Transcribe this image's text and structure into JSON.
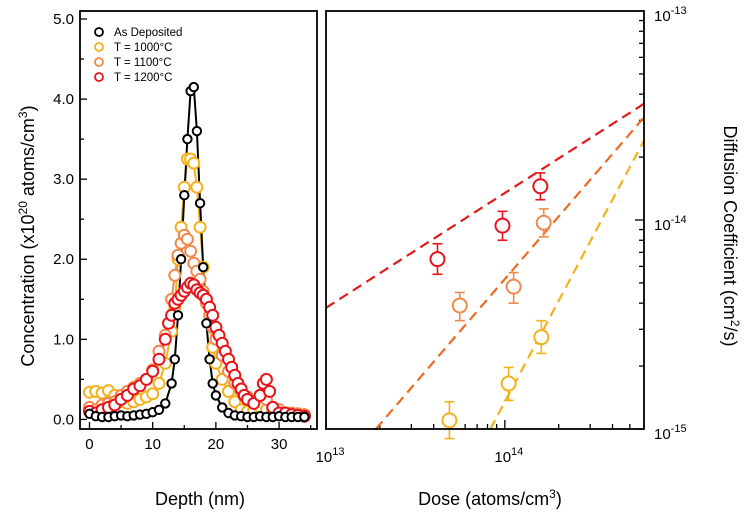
{
  "colors": {
    "as_deposited": "#000000",
    "t1000": "#f5b11c",
    "t1100": "#ef8a4c",
    "t1200": "#e8141c",
    "fit_1000": "#f2b31a",
    "fit_1100": "#ee6a22",
    "fit_1200": "#e11b1b"
  },
  "chart_data": [
    {
      "type": "scatter",
      "panel": "left",
      "xlabel": "Depth (nm)",
      "ylabel": "Concentration (x10^20 atoms/cm^3)",
      "ylabel_parts": {
        "pre": "Concentration (x10",
        "sup1": "20",
        "mid": " atoms/cm",
        "sup2": "3",
        "post": ")"
      },
      "xlim": [
        -1.5,
        36
      ],
      "ylim": [
        -0.12,
        5.1
      ],
      "x_ticks": [
        0,
        10,
        20,
        30
      ],
      "x_tick_labels": [
        "0",
        "10",
        "20",
        "30"
      ],
      "y_ticks": [
        0.0,
        1.0,
        2.0,
        3.0,
        4.0,
        5.0
      ],
      "y_tick_labels": [
        "0.0",
        "1.0",
        "2.0",
        "3.0",
        "4.0",
        "5.0"
      ],
      "grid": false,
      "legend_position": "top-left",
      "series": [
        {
          "name": "As Deposited",
          "color": "#000000",
          "points": [
            [
              0,
              0.07
            ],
            [
              1,
              0.04
            ],
            [
              2,
              0.03
            ],
            [
              3,
              0.03
            ],
            [
              4,
              0.04
            ],
            [
              5,
              0.05
            ],
            [
              6,
              0.04
            ],
            [
              7,
              0.05
            ],
            [
              8,
              0.06
            ],
            [
              9,
              0.07
            ],
            [
              10,
              0.09
            ],
            [
              11,
              0.12
            ],
            [
              12,
              0.2
            ],
            [
              13,
              0.45
            ],
            [
              13.5,
              0.75
            ],
            [
              14,
              1.3
            ],
            [
              14.5,
              2.0
            ],
            [
              15,
              2.8
            ],
            [
              15.5,
              3.5
            ],
            [
              16,
              4.1
            ],
            [
              16.5,
              4.15
            ],
            [
              17,
              3.6
            ],
            [
              17.5,
              2.7
            ],
            [
              18,
              1.9
            ],
            [
              18.5,
              1.2
            ],
            [
              19,
              0.75
            ],
            [
              19.5,
              0.45
            ],
            [
              20,
              0.3
            ],
            [
              21,
              0.15
            ],
            [
              22,
              0.08
            ],
            [
              23,
              0.05
            ],
            [
              24,
              0.04
            ],
            [
              25,
              0.03
            ],
            [
              26,
              0.03
            ],
            [
              27,
              0.04
            ],
            [
              28,
              0.03
            ],
            [
              29,
              0.03
            ],
            [
              30,
              0.04
            ],
            [
              31,
              0.03
            ],
            [
              32,
              0.03
            ],
            [
              33,
              0.03
            ],
            [
              34,
              0.03
            ]
          ]
        },
        {
          "name": "T = 1000°C",
          "color": "#f5b11c",
          "points": [
            [
              0,
              0.34
            ],
            [
              1,
              0.35
            ],
            [
              2,
              0.33
            ],
            [
              3,
              0.36
            ],
            [
              4,
              0.3
            ],
            [
              5,
              0.22
            ],
            [
              6,
              0.2
            ],
            [
              7,
              0.22
            ],
            [
              8,
              0.25
            ],
            [
              9,
              0.28
            ],
            [
              10,
              0.32
            ],
            [
              11,
              0.45
            ],
            [
              12,
              0.7
            ],
            [
              13,
              1.1
            ],
            [
              13.5,
              1.4
            ],
            [
              14,
              2.0
            ],
            [
              14.5,
              2.4
            ],
            [
              15,
              2.9
            ],
            [
              15.5,
              3.25
            ],
            [
              16,
              3.25
            ],
            [
              16.5,
              3.2
            ],
            [
              17,
              2.9
            ],
            [
              17.5,
              2.4
            ],
            [
              18,
              1.9
            ],
            [
              18.5,
              1.5
            ],
            [
              19,
              1.2
            ],
            [
              19.5,
              0.9
            ],
            [
              20,
              0.7
            ],
            [
              21,
              0.5
            ],
            [
              22,
              0.35
            ],
            [
              23,
              0.22
            ],
            [
              24,
              0.12
            ],
            [
              25,
              0.1
            ],
            [
              26,
              0.12
            ],
            [
              27,
              0.15
            ],
            [
              28,
              0.12
            ],
            [
              29,
              0.1
            ],
            [
              30,
              0.08
            ],
            [
              31,
              0.06
            ],
            [
              32,
              0.05
            ],
            [
              33,
              0.05
            ],
            [
              34,
              0.04
            ]
          ]
        },
        {
          "name": "T = 1100°C",
          "color": "#ef8a4c",
          "points": [
            [
              0,
              0.15
            ],
            [
              1,
              0.12
            ],
            [
              2,
              0.18
            ],
            [
              3,
              0.2
            ],
            [
              4,
              0.22
            ],
            [
              5,
              0.3
            ],
            [
              6,
              0.35
            ],
            [
              7,
              0.4
            ],
            [
              8,
              0.45
            ],
            [
              9,
              0.5
            ],
            [
              10,
              0.62
            ],
            [
              11,
              0.85
            ],
            [
              12,
              1.05
            ],
            [
              13,
              1.5
            ],
            [
              13.5,
              1.8
            ],
            [
              14,
              2.05
            ],
            [
              14.5,
              2.2
            ],
            [
              15,
              2.3
            ],
            [
              15.5,
              2.25
            ],
            [
              16,
              2.1
            ],
            [
              16.5,
              1.95
            ],
            [
              17,
              1.85
            ],
            [
              17.5,
              1.75
            ],
            [
              18,
              1.6
            ],
            [
              18.5,
              1.45
            ],
            [
              19,
              1.3
            ],
            [
              19.5,
              1.15
            ],
            [
              20,
              1.0
            ],
            [
              21,
              0.8
            ],
            [
              22,
              0.6
            ],
            [
              23,
              0.45
            ],
            [
              24,
              0.35
            ],
            [
              25,
              0.28
            ],
            [
              26,
              0.22
            ],
            [
              27,
              0.3
            ],
            [
              28,
              0.25
            ],
            [
              29,
              0.15
            ],
            [
              30,
              0.12
            ],
            [
              31,
              0.08
            ],
            [
              32,
              0.08
            ],
            [
              33,
              0.07
            ],
            [
              34,
              0.06
            ]
          ]
        },
        {
          "name": "T = 1200°C",
          "color": "#e8141c",
          "points": [
            [
              0,
              0.1
            ],
            [
              1,
              0.08
            ],
            [
              2,
              0.12
            ],
            [
              3,
              0.15
            ],
            [
              4,
              0.18
            ],
            [
              5,
              0.25
            ],
            [
              6,
              0.3
            ],
            [
              7,
              0.38
            ],
            [
              8,
              0.42
            ],
            [
              9,
              0.5
            ],
            [
              10,
              0.6
            ],
            [
              11,
              0.75
            ],
            [
              12,
              1.0
            ],
            [
              12.5,
              1.2
            ],
            [
              13,
              1.3
            ],
            [
              13.5,
              1.45
            ],
            [
              14,
              1.5
            ],
            [
              14.5,
              1.55
            ],
            [
              15,
              1.6
            ],
            [
              15.5,
              1.65
            ],
            [
              16,
              1.7
            ],
            [
              16.5,
              1.68
            ],
            [
              17,
              1.62
            ],
            [
              17.5,
              1.58
            ],
            [
              18,
              1.55
            ],
            [
              18.5,
              1.5
            ],
            [
              19,
              1.4
            ],
            [
              19.5,
              1.3
            ],
            [
              20,
              1.15
            ],
            [
              20.5,
              1.05
            ],
            [
              21,
              0.95
            ],
            [
              21.5,
              0.85
            ],
            [
              22,
              0.75
            ],
            [
              22.5,
              0.65
            ],
            [
              23,
              0.55
            ],
            [
              23.5,
              0.45
            ],
            [
              24,
              0.38
            ],
            [
              24.5,
              0.3
            ],
            [
              25,
              0.25
            ],
            [
              26,
              0.2
            ],
            [
              27,
              0.3
            ],
            [
              27.5,
              0.45
            ],
            [
              28,
              0.5
            ],
            [
              28.5,
              0.35
            ],
            [
              29,
              0.15
            ],
            [
              30,
              0.08
            ],
            [
              31,
              0.08
            ],
            [
              32,
              0.06
            ],
            [
              33,
              0.05
            ],
            [
              34,
              0.04
            ]
          ]
        }
      ]
    },
    {
      "type": "scatter",
      "panel": "right",
      "scale": "log-log",
      "xlabel": "Dose (atoms/cm^3)",
      "xlabel_parts": {
        "pre": "Dose (atoms/cm",
        "sup": "3",
        "post": ")"
      },
      "ylabel": "Diffusion Coefficient (cm^2/s)",
      "ylabel_parts": {
        "pre": "Diffusion Coefficient (cm",
        "sup": "2",
        "post": "/s)"
      },
      "xlim": [
        10000000000000.0,
        600000000000000.0
      ],
      "ylim": [
        1e-15,
        1e-13
      ],
      "x_tick_labels": [
        {
          "base": "10",
          "exp": "13",
          "value": 10000000000000.0
        },
        {
          "base": "10",
          "exp": "14",
          "value": 100000000000000.0
        }
      ],
      "y_tick_labels": [
        {
          "base": "10",
          "exp": "-13",
          "value": 1e-13
        },
        {
          "base": "10",
          "exp": "-14",
          "value": 1e-14
        },
        {
          "base": "10",
          "exp": "-15",
          "value": 1e-15
        }
      ],
      "y_axis_side": "right",
      "grid": false,
      "series": [
        {
          "name": "T = 1000°C",
          "color": "#f5b11c",
          "points": [
            [
              49000000000000.0,
              1.1e-15,
              1.35e-15,
              9e-16
            ],
            [
              105000000000000.0,
              1.65e-15,
              1.97e-15,
              1.37e-15
            ],
            [
              160000000000000.0,
              2.75e-15,
              3.3e-15,
              2.3e-15
            ]
          ]
        },
        {
          "name": "T = 1100°C",
          "color": "#ef8a4c",
          "points": [
            [
              56000000000000.0,
              3.9e-15,
              4.5e-15,
              3.3e-15
            ],
            [
              112000000000000.0,
              4.8e-15,
              5.6e-15,
              4e-15
            ],
            [
              165000000000000.0,
              9.7e-15,
              1.13e-14,
              8.3e-15
            ]
          ]
        },
        {
          "name": "T = 1200°C",
          "color": "#e8141c",
          "points": [
            [
              42000000000000.0,
              6.5e-15,
              7.7e-15,
              5.5e-15
            ],
            [
              97000000000000.0,
              9.4e-15,
              1.1e-14,
              8e-15
            ],
            [
              158000000000000.0,
              1.45e-14,
              1.68e-14,
              1.25e-14
            ]
          ]
        }
      ],
      "fit_lines": [
        {
          "color": "#e11b1b",
          "points": [
            [
              10000000000000.0,
              3.8e-15
            ],
            [
              600000000000000.0,
              3.6e-14
            ]
          ]
        },
        {
          "color": "#ee6a22",
          "points": [
            [
              19000000000000.0,
              1e-15
            ],
            [
              600000000000000.0,
              3.1e-14
            ]
          ]
        },
        {
          "color": "#f2b31a",
          "points": [
            [
              83000000000000.0,
              1e-15
            ],
            [
              600000000000000.0,
              2.4e-14
            ]
          ]
        }
      ]
    }
  ]
}
